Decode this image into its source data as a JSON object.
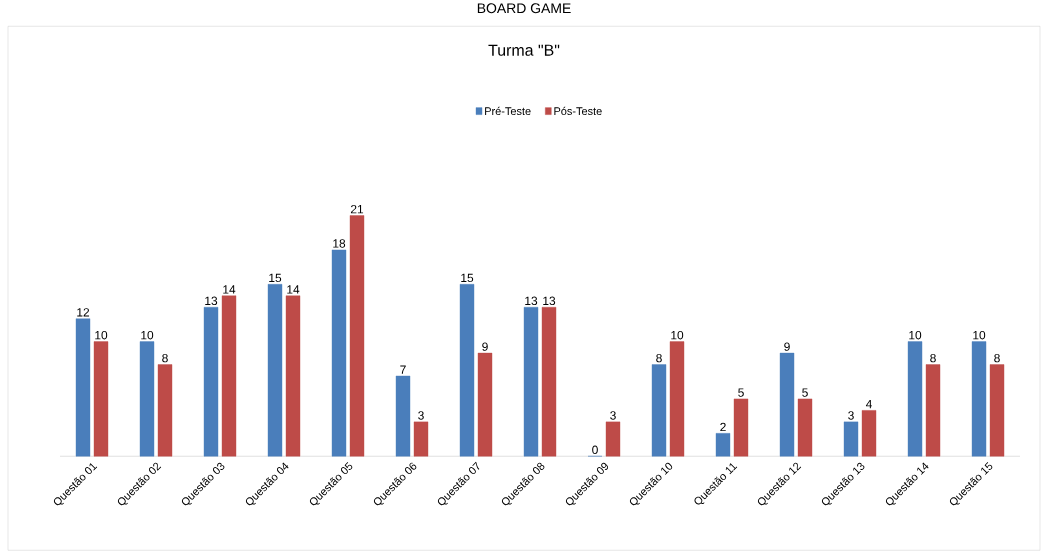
{
  "chart_data": {
    "type": "bar",
    "title": "Turma \"B\"",
    "annotations": [
      "BOARD GAME"
    ],
    "categories": [
      "Questão 01",
      "Questão 02",
      "Questão 03",
      "Questão 04",
      "Questão 05",
      "Questão 06",
      "Questão 07",
      "Questão 08",
      "Questão 09",
      "Questão 10",
      "Questão 11",
      "Questão 12",
      "Questão 13",
      "Questão 14",
      "Questão 15"
    ],
    "series": [
      {
        "name": "Pré-Teste",
        "color": "#4a7ebb",
        "values": [
          12,
          10,
          13,
          15,
          18,
          7,
          15,
          13,
          0,
          8,
          2,
          9,
          3,
          10,
          10
        ]
      },
      {
        "name": "Pós-Teste",
        "color": "#be4b48",
        "values": [
          10,
          8,
          14,
          14,
          21,
          3,
          9,
          13,
          3,
          10,
          5,
          5,
          4,
          8,
          8
        ]
      }
    ],
    "data_labels": true,
    "legend": "top"
  }
}
